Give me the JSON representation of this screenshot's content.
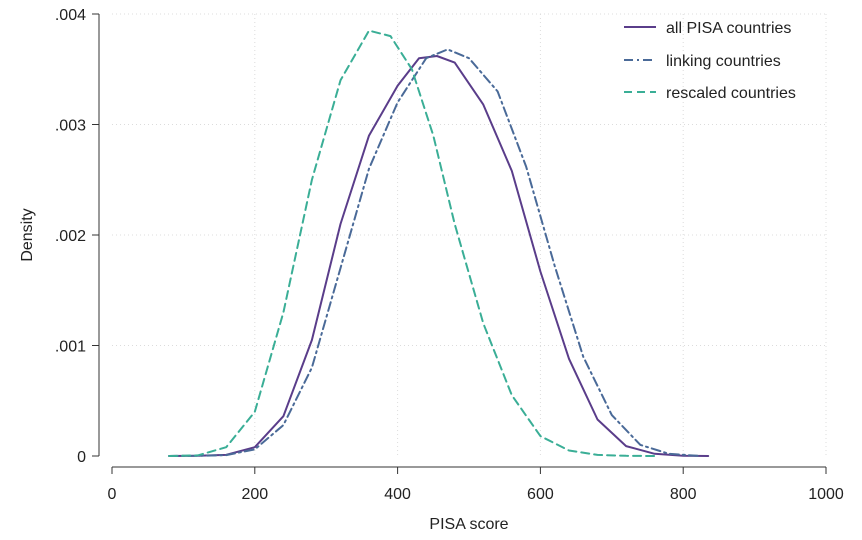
{
  "chart_data": {
    "type": "line",
    "xlabel": "PISA score",
    "ylabel": "Density",
    "xlim": [
      0,
      1000
    ],
    "ylim": [
      0,
      0.004
    ],
    "x_ticks": [
      {
        "value": 0,
        "label": "0"
      },
      {
        "value": 200,
        "label": "200"
      },
      {
        "value": 400,
        "label": "400"
      },
      {
        "value": 600,
        "label": "600"
      },
      {
        "value": 800,
        "label": "800"
      },
      {
        "value": 1000,
        "label": "1000"
      }
    ],
    "y_ticks": [
      {
        "value": 0,
        "label": "0"
      },
      {
        "value": 0.001,
        "label": ".001"
      },
      {
        "value": 0.002,
        "label": ".002"
      },
      {
        "value": 0.003,
        "label": ".003"
      },
      {
        "value": 0.004,
        "label": ".004"
      }
    ],
    "grid": true,
    "legend_position": "top-right",
    "series": [
      {
        "name": "all PISA countries",
        "color": "#5a3d8a",
        "dash": "solid",
        "points": [
          [
            80,
            0
          ],
          [
            120,
            2e-06
          ],
          [
            160,
            1e-05
          ],
          [
            200,
            8e-05
          ],
          [
            240,
            0.00036
          ],
          [
            280,
            0.00105
          ],
          [
            320,
            0.0021
          ],
          [
            360,
            0.0029
          ],
          [
            400,
            0.00335
          ],
          [
            430,
            0.0036
          ],
          [
            455,
            0.00362
          ],
          [
            480,
            0.00356
          ],
          [
            520,
            0.00318
          ],
          [
            560,
            0.00258
          ],
          [
            600,
            0.00167
          ],
          [
            640,
            0.00088
          ],
          [
            680,
            0.00033
          ],
          [
            720,
            9e-05
          ],
          [
            760,
            2e-05
          ],
          [
            800,
            2e-06
          ],
          [
            835,
            0
          ]
        ]
      },
      {
        "name": "linking countries",
        "color": "#4a6a98",
        "dash": "dashdot",
        "points": [
          [
            80,
            0
          ],
          [
            120,
            2e-06
          ],
          [
            160,
            8e-06
          ],
          [
            200,
            6e-05
          ],
          [
            240,
            0.00028
          ],
          [
            280,
            0.0008
          ],
          [
            320,
            0.0017
          ],
          [
            360,
            0.0026
          ],
          [
            400,
            0.0032
          ],
          [
            440,
            0.0036
          ],
          [
            470,
            0.00368
          ],
          [
            500,
            0.0036
          ],
          [
            540,
            0.0033
          ],
          [
            580,
            0.00262
          ],
          [
            620,
            0.00172
          ],
          [
            660,
            0.0009
          ],
          [
            700,
            0.00037
          ],
          [
            740,
            0.0001
          ],
          [
            780,
            2e-05
          ],
          [
            820,
            2e-06
          ]
        ]
      },
      {
        "name": "rescaled countries",
        "color": "#3aae96",
        "dash": "dashed",
        "points": [
          [
            80,
            0
          ],
          [
            120,
            5e-06
          ],
          [
            160,
            8e-05
          ],
          [
            200,
            0.0004
          ],
          [
            240,
            0.0013
          ],
          [
            280,
            0.0025
          ],
          [
            320,
            0.0034
          ],
          [
            360,
            0.00385
          ],
          [
            390,
            0.0038
          ],
          [
            420,
            0.0035
          ],
          [
            450,
            0.0029
          ],
          [
            480,
            0.0021
          ],
          [
            520,
            0.0012
          ],
          [
            560,
            0.00055
          ],
          [
            600,
            0.00018
          ],
          [
            640,
            5e-05
          ],
          [
            680,
            1e-05
          ],
          [
            720,
            2e-06
          ],
          [
            760,
            0
          ]
        ]
      }
    ]
  }
}
